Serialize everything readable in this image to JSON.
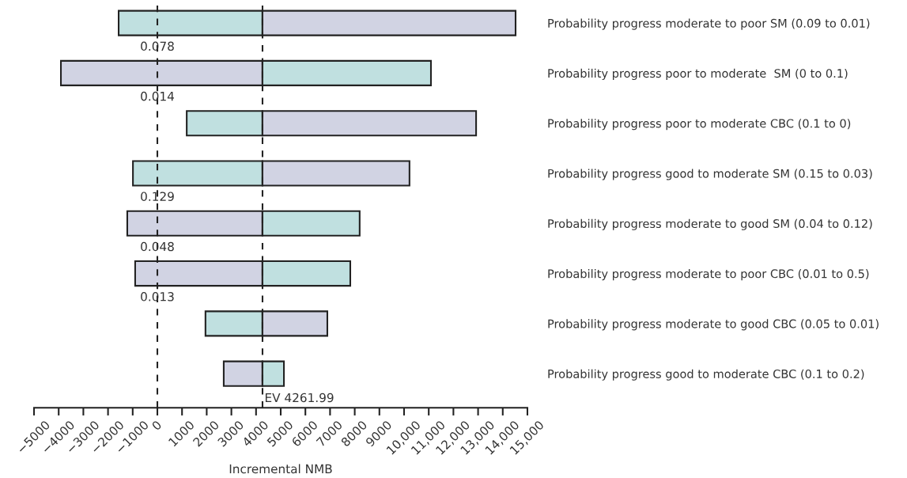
{
  "chart_data": {
    "type": "bar",
    "orientation": "horizontal",
    "xlabel": "Incremental NMB",
    "categories": [
      "Probability progress moderate to poor SM (0.09 to 0.01)",
      "Probability progress poor to moderate  SM (0 to 0.1)",
      "Probability progress poor to moderate CBC (0.1 to 0)",
      "Probability progress good to moderate SM (0.15 to 0.03)",
      "Probability progress moderate to good SM (0.04 to 0.12)",
      "Probability progress moderate to poor CBC (0.01 to 0.5)",
      "Probability progress moderate to good CBC (0.05 to 0.01)",
      "Probability progress good to moderate CBC (0.1 to 0.2)"
    ],
    "series": [
      {
        "base": [
          -1570,
          -3910,
          1190,
          -990,
          -1220,
          -900,
          1950,
          2690
        ],
        "values": [
          5830,
          8170,
          3070,
          5250,
          5480,
          5160,
          2310,
          1570
        ],
        "colors": [
          "#c0e0e0",
          "#d1d3e3",
          "#c0e0e0",
          "#c0e0e0",
          "#d1d3e3",
          "#d1d3e3",
          "#c0e0e0",
          "#d1d3e3"
        ]
      },
      {
        "base": [
          4260,
          4260,
          4260,
          4260,
          4260,
          4260,
          4260,
          4260
        ],
        "values": [
          10260,
          6830,
          8660,
          5960,
          3940,
          3560,
          2630,
          870
        ],
        "colors": [
          "#d1d3e3",
          "#c0e0e0",
          "#d1d3e3",
          "#d1d3e3",
          "#c0e0e0",
          "#c0e0e0",
          "#d1d3e3",
          "#c0e0e0"
        ]
      }
    ],
    "xlim": [
      -5000,
      15000
    ],
    "xticks": [
      {
        "value": -5000,
        "label": "−5000"
      },
      {
        "value": -4000,
        "label": "−4000"
      },
      {
        "value": -3000,
        "label": "−3000"
      },
      {
        "value": -2000,
        "label": "−2000"
      },
      {
        "value": -1000,
        "label": "−1000"
      },
      0,
      1000,
      2000,
      3000,
      4000,
      5000,
      6000,
      7000,
      8000,
      9000,
      {
        "value": 10000,
        "label": "10,000"
      },
      {
        "value": 11000,
        "label": "11,000"
      },
      {
        "value": 12000,
        "label": "12,000"
      },
      {
        "value": 13000,
        "label": "13,000"
      },
      {
        "value": 14000,
        "label": "14,000"
      },
      {
        "value": 15000,
        "label": "15,000"
      }
    ],
    "ref_lines": [
      {
        "axis": "x",
        "value": 0,
        "line_style": "dashed",
        "color": "#222222"
      },
      {
        "axis": "x",
        "value": 4261.99,
        "label": "EV 4261.99",
        "line_style": "dashed",
        "color": "#222222"
      }
    ],
    "annotations": [
      {
        "text": "0.078",
        "y": "Probability progress moderate to poor SM (0.09 to 0.01)"
      },
      {
        "text": "0.014",
        "y": "Probability progress poor to moderate  SM (0 to 0.1)"
      },
      {
        "text": "0.129",
        "y": "Probability progress good to moderate SM (0.15 to 0.03)"
      },
      {
        "text": "0.048",
        "y": "Probability progress moderate to good SM (0.04 to 0.12)"
      },
      {
        "text": "0.013",
        "y": "Probability progress moderate to poor CBC (0.01 to 0.5)"
      }
    ],
    "grid": false,
    "legend": false
  }
}
